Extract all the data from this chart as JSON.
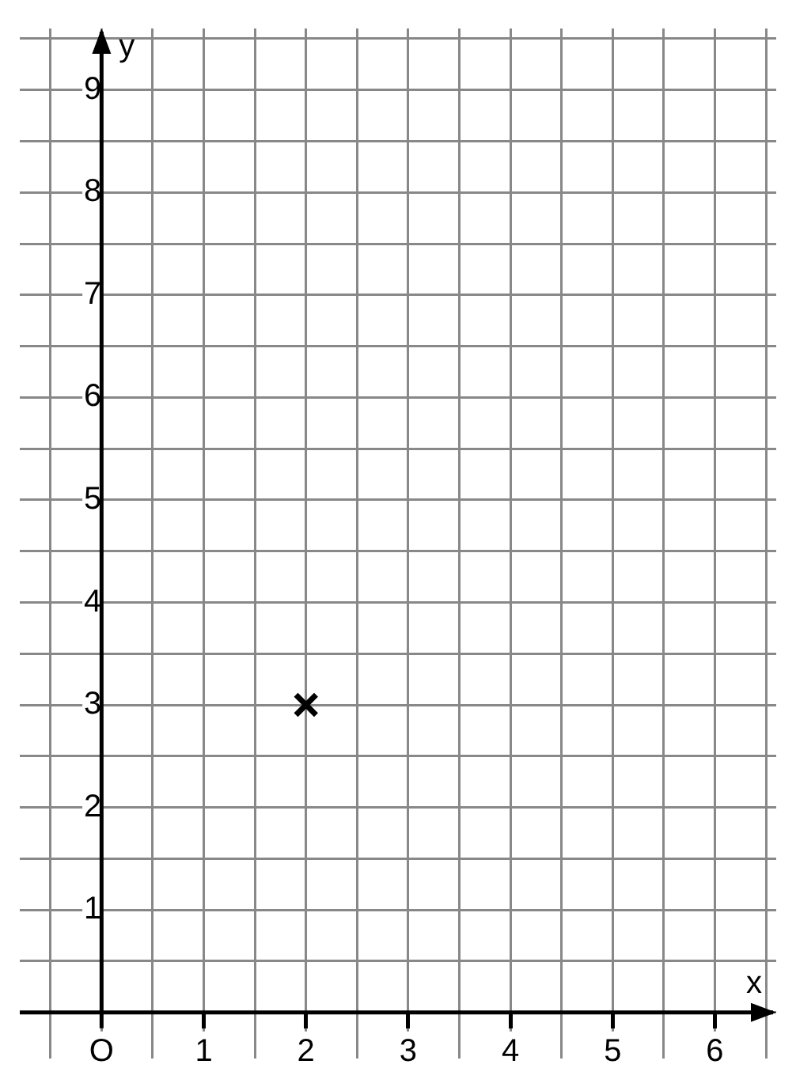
{
  "chart_data": {
    "type": "scatter",
    "xlabel": "x",
    "ylabel": "y",
    "xlim": [
      -0.8,
      6.6
    ],
    "ylim": [
      -0.45,
      9.6
    ],
    "xticks": [
      {
        "value": -0.5,
        "label": null
      },
      {
        "value": 0,
        "label": "O"
      },
      {
        "value": 0.5,
        "label": null
      },
      1,
      {
        "value": 1.5,
        "label": null
      },
      2,
      {
        "value": 2.5,
        "label": null
      },
      3,
      {
        "value": 3.5,
        "label": null
      },
      4,
      {
        "value": 4.5,
        "label": null
      },
      5,
      {
        "value": 5.5,
        "label": null
      },
      6,
      {
        "value": 6.5,
        "label": null
      }
    ],
    "yticks": [
      {
        "value": 0,
        "label": null
      },
      {
        "value": 0.5,
        "label": null
      },
      1,
      {
        "value": 1.5,
        "label": null
      },
      2,
      {
        "value": 2.5,
        "label": null
      },
      3,
      {
        "value": 3.5,
        "label": null
      },
      4,
      {
        "value": 4.5,
        "label": null
      },
      5,
      {
        "value": 5.5,
        "label": null
      },
      6,
      {
        "value": 6.5,
        "label": null
      },
      7,
      {
        "value": 7.5,
        "label": null
      },
      8,
      {
        "value": 8.5,
        "label": null
      },
      9,
      {
        "value": 9.5,
        "label": null
      }
    ],
    "grid": true,
    "marker": "cross",
    "series": [
      {
        "color": "#000000",
        "x": [
          2
        ],
        "values": [
          3
        ]
      }
    ]
  }
}
